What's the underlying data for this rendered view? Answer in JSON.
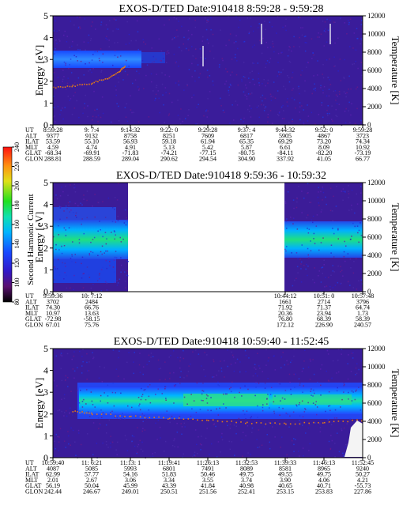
{
  "panels": [
    {
      "title": "EXOS-D/TED   Date:910418   8:59:28 - 9:59:28",
      "ylabel": "Energy [eV]",
      "y2label": "Temperature [K]",
      "yticks": [
        "0",
        "1",
        "2",
        "3",
        "4",
        "5"
      ],
      "y2ticks": [
        "0",
        "2000",
        "4000",
        "6000",
        "8000",
        "10000",
        "12000"
      ],
      "table": {
        "labels": [
          "UT",
          "ALT",
          "ILAT",
          "MLT",
          "GLAT",
          "GLON"
        ],
        "columns": [
          [
            "8:59:28",
            "9377",
            "53.59",
            "4.59",
            "-68.34",
            "288.81"
          ],
          [
            "9:  7:4",
            "9132",
            "55.10",
            "4.74",
            "-69.91",
            "288.59"
          ],
          [
            "9:14:32",
            "8758",
            "56.93",
            "4.91",
            "-71.83",
            "289.04"
          ],
          [
            "9:22: 0",
            "8251",
            "59.18",
            "5.13",
            "-74.21",
            "290.62"
          ],
          [
            "9:29:28",
            "7609",
            "61.94",
            "5.42",
            "-77.15",
            "294.54"
          ],
          [
            "9:37: 4",
            "6817",
            "65.35",
            "5.87",
            "-80.75",
            "304.90"
          ],
          [
            "9:44:32",
            "5905",
            "69.29",
            "6.61",
            "-84.11",
            "337.92"
          ],
          [
            "9:52: 0",
            "4867",
            "73.20",
            "8.09",
            "-82.20",
            "41.05"
          ],
          [
            "9:59:28",
            "3723",
            "74.34",
            "10.92",
            "-73.19",
            "66.77"
          ]
        ]
      }
    },
    {
      "title": "EXOS-D/TED   Date:910418   9:59:36 - 10:59:32",
      "ylabel": "Energy [eV]",
      "y2label": "Temperature [K]",
      "yticks": [
        "0",
        "1",
        "2",
        "3",
        "4",
        "5"
      ],
      "y2ticks": [
        "0",
        "2000",
        "4000",
        "6000",
        "8000",
        "10000",
        "12000"
      ],
      "table": {
        "labels": [
          "UT",
          "ALT",
          "ILAT",
          "MLT",
          "GLAT",
          "GLON"
        ],
        "columns": [
          [
            "9:59:36",
            "3702",
            "74.30",
            "10.97",
            "-72.98",
            "67.01"
          ],
          [
            "10: 7:12",
            "2484",
            "66.76",
            "13.63",
            "-58.15",
            "75.76"
          ],
          [
            "10:44:12",
            "1661",
            "71.92",
            "20.36",
            "76.80",
            "172.12"
          ],
          [
            "10:51: 0",
            "2714",
            "71.37",
            "23.94",
            "68.39",
            "226.90"
          ],
          [
            "10:57:48",
            "3796",
            "64.74",
            "1.73",
            "58.39",
            "240.57"
          ]
        ]
      }
    },
    {
      "title": "EXOS-D/TED   Date:910418   10:59:40 - 11:52:45",
      "ylabel": "Energy [eV]",
      "y2label": "Temperature [K]",
      "yticks": [
        "0",
        "1",
        "2",
        "3",
        "4",
        "5"
      ],
      "y2ticks": [
        "0",
        "2000",
        "4000",
        "6000",
        "8000",
        "10000",
        "12000"
      ],
      "table": {
        "labels": [
          "UT",
          "ALT",
          "ILAT",
          "MLT",
          "GLAT",
          "GLON"
        ],
        "columns": [
          [
            "10:59:40",
            "4087",
            "62.99",
            "2.01",
            "56.19",
            "242.44"
          ],
          [
            "11: 6:21",
            "5085",
            "57.77",
            "2.67",
            "50.04",
            "246.67"
          ],
          [
            "11:13: 1",
            "5993",
            "54.16",
            "3.06",
            "45.99",
            "249.01"
          ],
          [
            "11:19:41",
            "6801",
            "51.83",
            "3.34",
            "43.39",
            "250.51"
          ],
          [
            "11:26:13",
            "7491",
            "50.46",
            "3.55",
            "41.84",
            "251.56"
          ],
          [
            "11:32:53",
            "8089",
            "49.75",
            "3.74",
            "40.98",
            "252.41"
          ],
          [
            "11:39:33",
            "8581",
            "49.55",
            "3.90",
            "40.65",
            "253.15"
          ],
          [
            "11:46:13",
            "8965",
            "49.75",
            "4.06",
            "40.71",
            "253.83"
          ],
          [
            "11:52:45",
            "9240",
            "50.27",
            "4.21",
            "-55.73",
            "227.86"
          ]
        ]
      }
    }
  ],
  "colorbar": {
    "label": "Second Harmonic Current",
    "ticks": [
      "80",
      "100",
      "120",
      "140",
      "160",
      "180",
      "200",
      "220",
      "240"
    ],
    "colors": [
      "#000000",
      "#7a1a8a",
      "#3018c8",
      "#1848ff",
      "#00b4ff",
      "#10e0b0",
      "#20e020",
      "#e0e018",
      "#ff9010",
      "#ff1010"
    ]
  },
  "chart_data": [
    {
      "type": "heatmap",
      "title": "EXOS-D/TED   Date:910418   8:59:28 - 9:59:28",
      "xlabel": "",
      "ylabel": "Energy [eV]",
      "y2label": "Temperature [K]",
      "ylim": [
        0,
        5
      ],
      "y2lim": [
        0,
        12000
      ],
      "x_ticks": [
        "8:59:28",
        "9:  7:4",
        "9:14:32",
        "9:22: 0",
        "9:29:28",
        "9:37: 4",
        "9:44:32",
        "9:52: 0",
        "9:59:28"
      ],
      "temperature_trace_K": [
        [
          0.0,
          4200
        ],
        [
          0.5,
          4350
        ],
        [
          1.0,
          4650
        ],
        [
          1.4,
          5200
        ],
        [
          1.7,
          5900
        ],
        [
          1.85,
          6600
        ]
      ],
      "features": [
        {
          "x_range": [
            0.0,
            1.8
          ],
          "energy_range_eV": [
            2.75,
            3.25
          ],
          "level": 150
        },
        {
          "x_range": [
            1.8,
            8.0
          ],
          "energy_range_eV": [
            0,
            5
          ],
          "level": 100
        }
      ]
    },
    {
      "type": "heatmap",
      "title": "EXOS-D/TED   Date:910418   9:59:36 - 10:59:32",
      "xlabel": "",
      "ylabel": "Energy [eV]",
      "y2label": "Temperature [K]",
      "ylim": [
        0,
        5
      ],
      "y2lim": [
        0,
        12000
      ],
      "x_ticks": [
        "9:59:36",
        "10: 7:12",
        "10:44:12",
        "10:51: 0",
        "10:57:48"
      ],
      "data_gap": [
        "10: 7:12",
        "10:44:12"
      ],
      "features": [
        {
          "x_range": [
            0.0,
            1.0
          ],
          "energy_range_eV": [
            1.5,
            3.2
          ],
          "level": 170
        },
        {
          "x_range": [
            0.0,
            1.0
          ],
          "energy_range_eV": [
            0.3,
            1.5
          ],
          "level": 130
        },
        {
          "x_range": [
            2.0,
            4.0
          ],
          "energy_range_eV": [
            1.3,
            3.0
          ],
          "level": 150
        }
      ]
    },
    {
      "type": "heatmap",
      "title": "EXOS-D/TED   Date:910418   10:59:40 - 11:52:45",
      "xlabel": "",
      "ylabel": "Energy [eV]",
      "y2label": "Temperature [K]",
      "ylim": [
        0,
        5
      ],
      "y2lim": [
        0,
        12000
      ],
      "x_ticks": [
        "10:59:40",
        "11: 6:21",
        "11:13: 1",
        "11:19:41",
        "11:26:13",
        "11:32:53",
        "11:39:33",
        "11:46:13",
        "11:52:45"
      ],
      "temperature_trace_K": [
        [
          0.5,
          5200
        ],
        [
          1.0,
          4900
        ],
        [
          2.0,
          4600
        ],
        [
          3.0,
          4400
        ],
        [
          4.0,
          4200
        ],
        [
          5.0,
          3900
        ],
        [
          6.0,
          3800
        ],
        [
          7.0,
          3900
        ],
        [
          8.0,
          4200
        ]
      ],
      "features": [
        {
          "x_range": [
            0.3,
            8.0
          ],
          "energy_range_eV": [
            2.0,
            3.2
          ],
          "level": 160
        },
        {
          "x_range": [
            2.0,
            8.0
          ],
          "energy_range_eV": [
            2.3,
            2.9
          ],
          "level": 180
        }
      ]
    }
  ]
}
